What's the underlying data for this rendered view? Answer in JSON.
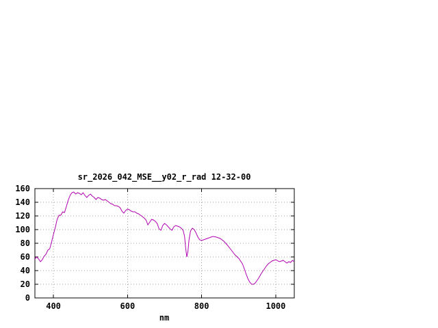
{
  "window": {
    "background": "#ffffff"
  },
  "chart_data": {
    "type": "line",
    "title": "sr_2026_042_MSE__y02_r_rad 12-32-00",
    "xlabel": "nm",
    "ylabel": "",
    "xlim": [
      350,
      1050
    ],
    "ylim": [
      0,
      160
    ],
    "xticks": [
      400,
      600,
      800,
      1000
    ],
    "yticks": [
      0,
      20,
      40,
      60,
      80,
      100,
      120,
      140,
      160
    ],
    "grid": true,
    "grid_color": "#9c9c9c",
    "legend_position": "none",
    "line_color": "#b000b0",
    "series": [
      {
        "points": [
          [
            350,
            57
          ],
          [
            355,
            60
          ],
          [
            360,
            57
          ],
          [
            365,
            53
          ],
          [
            370,
            56
          ],
          [
            375,
            61
          ],
          [
            380,
            64
          ],
          [
            385,
            70
          ],
          [
            390,
            72
          ],
          [
            395,
            82
          ],
          [
            400,
            93
          ],
          [
            405,
            103
          ],
          [
            410,
            115
          ],
          [
            415,
            121
          ],
          [
            420,
            121
          ],
          [
            425,
            126
          ],
          [
            430,
            125
          ],
          [
            435,
            134
          ],
          [
            440,
            143
          ],
          [
            445,
            150
          ],
          [
            450,
            154
          ],
          [
            455,
            155
          ],
          [
            460,
            152
          ],
          [
            465,
            154
          ],
          [
            470,
            153
          ],
          [
            475,
            151
          ],
          [
            480,
            154
          ],
          [
            485,
            150
          ],
          [
            490,
            147
          ],
          [
            495,
            150
          ],
          [
            500,
            152
          ],
          [
            505,
            149
          ],
          [
            510,
            147
          ],
          [
            515,
            144
          ],
          [
            520,
            147
          ],
          [
            525,
            146
          ],
          [
            530,
            144
          ],
          [
            535,
            143
          ],
          [
            540,
            144
          ],
          [
            545,
            142
          ],
          [
            550,
            140
          ],
          [
            555,
            138
          ],
          [
            560,
            137
          ],
          [
            565,
            135
          ],
          [
            570,
            135
          ],
          [
            575,
            134
          ],
          [
            580,
            132
          ],
          [
            585,
            127
          ],
          [
            590,
            124
          ],
          [
            595,
            128
          ],
          [
            600,
            130
          ],
          [
            605,
            129
          ],
          [
            610,
            127
          ],
          [
            615,
            126
          ],
          [
            620,
            126
          ],
          [
            625,
            124
          ],
          [
            630,
            123
          ],
          [
            635,
            121
          ],
          [
            640,
            119
          ],
          [
            645,
            117
          ],
          [
            650,
            114
          ],
          [
            655,
            107
          ],
          [
            660,
            111
          ],
          [
            665,
            115
          ],
          [
            670,
            114
          ],
          [
            675,
            112
          ],
          [
            680,
            109
          ],
          [
            685,
            101
          ],
          [
            690,
            99
          ],
          [
            695,
            106
          ],
          [
            700,
            109
          ],
          [
            705,
            107
          ],
          [
            710,
            104
          ],
          [
            715,
            101
          ],
          [
            720,
            99
          ],
          [
            725,
            104
          ],
          [
            730,
            106
          ],
          [
            735,
            105
          ],
          [
            740,
            104
          ],
          [
            745,
            102
          ],
          [
            750,
            99
          ],
          [
            754,
            90
          ],
          [
            757,
            72
          ],
          [
            760,
            60
          ],
          [
            763,
            68
          ],
          [
            766,
            85
          ],
          [
            770,
            98
          ],
          [
            775,
            102
          ],
          [
            780,
            100
          ],
          [
            785,
            95
          ],
          [
            790,
            89
          ],
          [
            795,
            85
          ],
          [
            800,
            84
          ],
          [
            810,
            86
          ],
          [
            820,
            88
          ],
          [
            830,
            90
          ],
          [
            840,
            89
          ],
          [
            850,
            87
          ],
          [
            860,
            83
          ],
          [
            870,
            77
          ],
          [
            880,
            70
          ],
          [
            890,
            63
          ],
          [
            900,
            58
          ],
          [
            910,
            50
          ],
          [
            915,
            43
          ],
          [
            920,
            35
          ],
          [
            925,
            28
          ],
          [
            930,
            23
          ],
          [
            935,
            20
          ],
          [
            940,
            20
          ],
          [
            945,
            22
          ],
          [
            950,
            26
          ],
          [
            955,
            30
          ],
          [
            960,
            35
          ],
          [
            965,
            39
          ],
          [
            970,
            43
          ],
          [
            975,
            47
          ],
          [
            980,
            50
          ],
          [
            985,
            52
          ],
          [
            990,
            54
          ],
          [
            1000,
            56
          ],
          [
            1010,
            53
          ],
          [
            1015,
            54
          ],
          [
            1020,
            55
          ],
          [
            1025,
            53
          ],
          [
            1030,
            51
          ],
          [
            1035,
            53
          ],
          [
            1040,
            52
          ],
          [
            1045,
            55
          ],
          [
            1050,
            53
          ]
        ]
      }
    ]
  }
}
